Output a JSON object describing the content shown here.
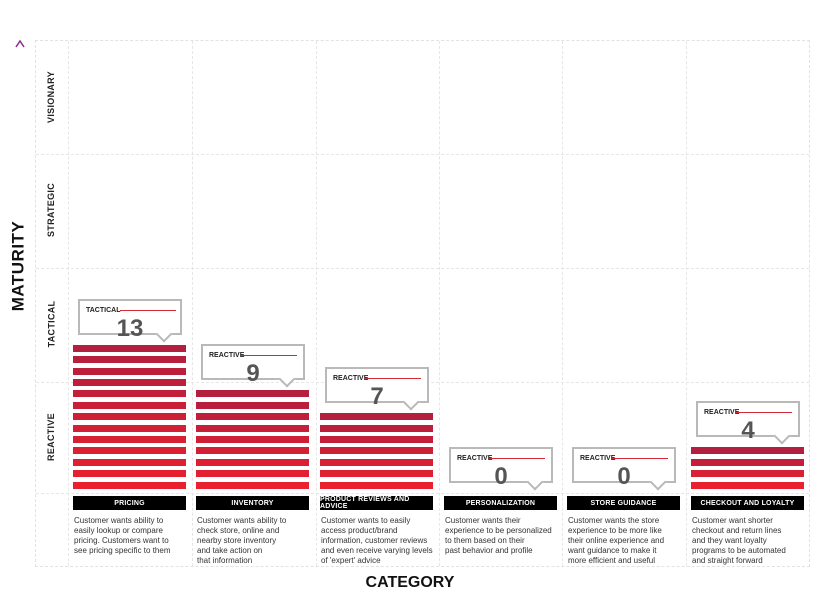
{
  "chart_data": {
    "type": "bar",
    "xlabel": "CATEGORY",
    "ylabel": "MATURITY",
    "levels": [
      "REACTIVE",
      "TACTICAL",
      "STRATEGIC",
      "VISIONARY"
    ],
    "categories": [
      "PRICING",
      "INVENTORY",
      "PRODUCT REVIEWS AND ADVICE",
      "PERSONALIZATION",
      "STORE GUIDANCE",
      "CHECKOUT AND LOYALTY"
    ],
    "values": [
      13,
      9,
      7,
      0,
      0,
      4
    ],
    "value_labels": [
      "13",
      "9",
      "7",
      "0",
      "0",
      "4"
    ],
    "maturity_labels": [
      "TACTICAL",
      "REACTIVE",
      "REACTIVE",
      "REACTIVE",
      "REACTIVE",
      "REACTIVE"
    ],
    "descriptions": [
      [
        "Customer wants ability to",
        "easily lookup or compare",
        "pricing. Customers want to",
        "see pricing specific to them"
      ],
      [
        "Customer wants ability to",
        "check store, online and",
        "nearby store inventory",
        "and take action on",
        "that information"
      ],
      [
        "Customer wants to easily",
        "access product/brand",
        "information, customer reviews",
        "and even receive varying levels",
        "of 'expert' advice"
      ],
      [
        "Customer wants their",
        "experience to be personalized",
        "to them based on their",
        "past behavior and profile"
      ],
      [
        "Customer wants the store",
        "experience to be more like",
        "their online experience and",
        "want guidance to make it",
        "more efficient and useful"
      ],
      [
        "Customer want shorter",
        "checkout and return lines",
        "and they want loyalty",
        "programs to be automated",
        "and straight forward"
      ]
    ],
    "colors": {
      "bar_dark": "#b21f3f",
      "bar_light": "#e8202f",
      "axis_arrow": "#8a2b8f",
      "axis_arrow_base": "#c0283a",
      "callout_border": "#b9b9b9",
      "callout_line": "#d42a38",
      "category_bar": "#000000"
    },
    "grid": true
  }
}
